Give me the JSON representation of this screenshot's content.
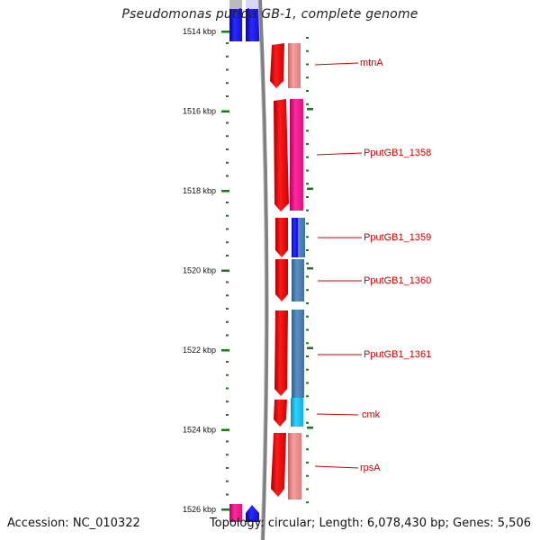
{
  "title": "Pseudomonas putida GB-1, complete genome",
  "footer": {
    "accession": "Accession: NC_010322",
    "summary": "Topology: circular; Length: 6,078,430 bp; Genes: 5,506"
  },
  "ruler": {
    "labels": [
      "1514 kbp",
      "1516 kbp",
      "1518 kbp",
      "1520 kbp",
      "1522 kbp",
      "1524 kbp",
      "1526 kbp"
    ]
  },
  "genes": [
    {
      "label": "mtnA",
      "color": "#f08c8c"
    },
    {
      "label": "PputGB1_1358",
      "color": "#ff1493"
    },
    {
      "label": "PputGB1_1359",
      "color": "#1010e0"
    },
    {
      "label": "PputGB1_1360",
      "color": "#4682b4"
    },
    {
      "label": "PputGB1_1361",
      "color": "#4682b4"
    },
    {
      "label": "cmk",
      "color": "#00bfff"
    },
    {
      "label": "rpsA",
      "color": "#f08c8c"
    }
  ],
  "colors": {
    "forward_strand": "#ff0000",
    "tick": "#1a7a1a",
    "backbone": "#808080",
    "label_text": "#cc0000"
  }
}
